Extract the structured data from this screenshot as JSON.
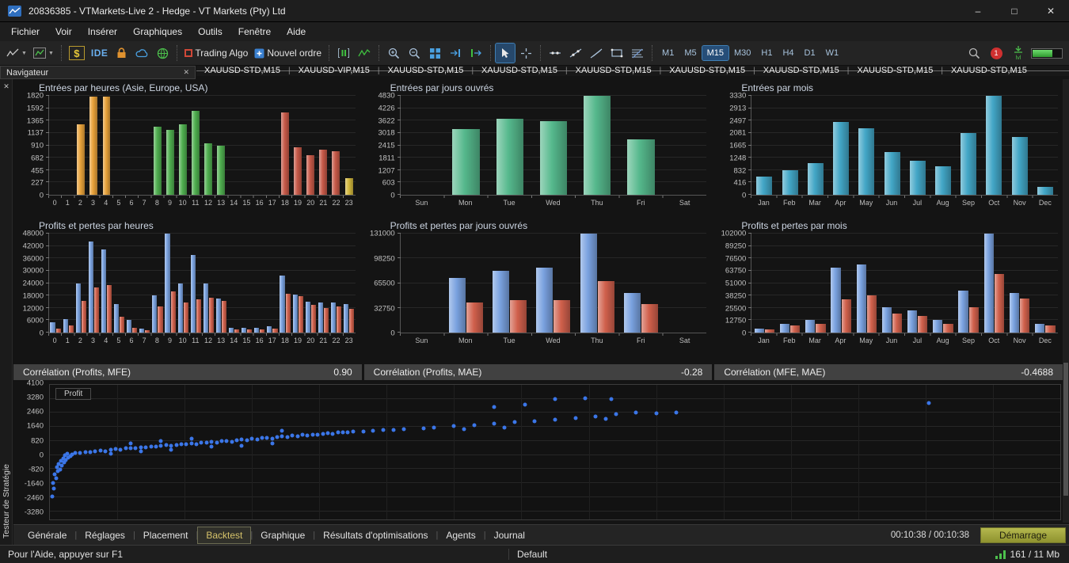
{
  "window": {
    "title": "20836385 - VTMarkets-Live 2 - Hedge - VT Markets (Pty) Ltd",
    "controls": {
      "minimize": "–",
      "maximize": "□",
      "close": "✕"
    }
  },
  "menu": {
    "items": [
      "Fichier",
      "Voir",
      "Insérer",
      "Graphiques",
      "Outils",
      "Fenêtre",
      "Aide"
    ]
  },
  "toolbar": {
    "dollar_label": "$",
    "ide_label": "IDE",
    "trading_algo_label": "Trading Algo",
    "nouvel_ordre_label": "Nouvel ordre",
    "timeframes": [
      "M1",
      "M5",
      "M15",
      "M30",
      "H1",
      "H4",
      "D1",
      "W1"
    ],
    "active_timeframe": "M15",
    "badge_count": "1",
    "lvl_label": "lvl"
  },
  "chart_tabs": [
    "XAUUSD-STD,M15",
    "XAUUSD-VIP,M15",
    "XAUUSD-STD,M15",
    "XAUUSD-STD,M15",
    "XAUUSD-STD,M15",
    "XAUUSD-STD,M15",
    "XAUUSD-STD,M15",
    "XAUUSD-STD,M15",
    "XAUUSD-STD,M15"
  ],
  "navigator": {
    "title": "Navigateur"
  },
  "tester": {
    "panel_title": "Testeur de Stratégie",
    "tabs": [
      "Générale",
      "Réglages",
      "Placement",
      "Backtest",
      "Graphique",
      "Résultats d'optimisations",
      "Agents",
      "Journal"
    ],
    "active_tab": "Backtest",
    "time": "00:10:38 / 00:10:38",
    "start_button": "Démarrage",
    "correlations": [
      {
        "label": "Corrélation (Profits, MFE)",
        "value": "0.90"
      },
      {
        "label": "Corrélation (Profits, MAE)",
        "value": "-0.28"
      },
      {
        "label": "Corrélation (MFE, MAE)",
        "value": "-0.4688"
      }
    ]
  },
  "status_bar": {
    "help": "Pour l'Aide, appuyer sur F1",
    "profile": "Default",
    "memory": "161 / 11 Mb"
  },
  "chart_data": [
    {
      "id": "entries-hours",
      "type": "bar",
      "title": "Entrées par heures (Asie, Europe, USA)",
      "categories": [
        "0",
        "1",
        "2",
        "3",
        "4",
        "5",
        "6",
        "7",
        "8",
        "9",
        "10",
        "11",
        "12",
        "13",
        "14",
        "15",
        "16",
        "17",
        "18",
        "19",
        "20",
        "21",
        "22",
        "23"
      ],
      "yticks": [
        0,
        227,
        455,
        682,
        910,
        1137,
        1365,
        1592,
        1820
      ],
      "series": [
        {
          "name": "Entrées",
          "values": [
            0,
            0,
            1300,
            1800,
            1800,
            0,
            0,
            0,
            1250,
            1200,
            1300,
            1550,
            950,
            900,
            0,
            0,
            0,
            0,
            1510,
            880,
            730,
            830,
            800,
            310
          ]
        }
      ],
      "bar_colors": [
        null,
        null,
        "#e8a23a",
        "#e8a23a",
        "#e8a23a",
        null,
        null,
        null,
        "#4fae4f",
        "#4fae4f",
        "#4fae4f",
        "#4fae4f",
        "#4fae4f",
        "#4fae4f",
        null,
        null,
        null,
        null,
        "#c75948",
        "#c75948",
        "#c75948",
        "#c75948",
        "#c75948",
        "#d2b73c"
      ]
    },
    {
      "id": "entries-days",
      "type": "bar",
      "title": "Entrées par jours ouvrés",
      "categories": [
        "Sun",
        "Mon",
        "Tue",
        "Wed",
        "Thu",
        "Fri",
        "Sat"
      ],
      "yticks": [
        0,
        603,
        1207,
        1811,
        2415,
        3018,
        3622,
        4226,
        4830
      ],
      "series": [
        {
          "name": "Entrées",
          "color": "#55b88c",
          "values": [
            0,
            3200,
            3700,
            3600,
            4830,
            2700,
            0
          ]
        }
      ]
    },
    {
      "id": "entries-months",
      "type": "bar",
      "title": "Entrées par mois",
      "categories": [
        "Jan",
        "Feb",
        "Mar",
        "Apr",
        "May",
        "Jun",
        "Jul",
        "Aug",
        "Sep",
        "Oct",
        "Nov",
        "Dec"
      ],
      "yticks": [
        0,
        416,
        832,
        1248,
        1665,
        2081,
        2497,
        2913,
        3330
      ],
      "series": [
        {
          "name": "Entrées",
          "color": "#42a6c6",
          "values": [
            620,
            830,
            1060,
            2450,
            2250,
            1450,
            1150,
            950,
            2080,
            3330,
            1950,
            260
          ]
        }
      ]
    },
    {
      "id": "pl-hours",
      "type": "bar",
      "title": "Profits et pertes par heures",
      "categories": [
        "0",
        "1",
        "2",
        "3",
        "4",
        "5",
        "6",
        "7",
        "8",
        "9",
        "10",
        "11",
        "12",
        "13",
        "14",
        "15",
        "16",
        "17",
        "18",
        "19",
        "20",
        "21",
        "22",
        "23"
      ],
      "yticks": [
        0,
        6000,
        12000,
        18000,
        24000,
        30000,
        36000,
        42000,
        48000
      ],
      "series": [
        {
          "name": "Profits",
          "color": "#7aa2e0",
          "values": [
            5000,
            6500,
            24000,
            44000,
            40500,
            14000,
            6000,
            2000,
            18000,
            48000,
            24000,
            37500,
            24000,
            16500,
            2500,
            2500,
            2500,
            3000,
            27500,
            18500,
            15000,
            14500,
            14500,
            14000
          ]
        },
        {
          "name": "Pertes",
          "color": "#d0604c",
          "values": [
            2000,
            3500,
            15500,
            22000,
            23000,
            7500,
            2500,
            1000,
            12500,
            20000,
            14500,
            16000,
            17000,
            15500,
            1500,
            1500,
            1500,
            2000,
            19000,
            17500,
            13500,
            12000,
            12500,
            11500
          ]
        }
      ]
    },
    {
      "id": "pl-days",
      "type": "bar",
      "title": "Profits et pertes par jours ouvrés",
      "categories": [
        "Sun",
        "Mon",
        "Tue",
        "Wed",
        "Thu",
        "Fri",
        "Sat"
      ],
      "yticks": [
        0,
        32750,
        65500,
        98250,
        131000
      ],
      "series": [
        {
          "name": "Profits",
          "color": "#7aa2e0",
          "values": [
            0,
            72000,
            82000,
            86000,
            131000,
            52000,
            0
          ]
        },
        {
          "name": "Pertes",
          "color": "#d0604c",
          "values": [
            0,
            40000,
            42500,
            43500,
            68000,
            37500,
            0
          ]
        }
      ]
    },
    {
      "id": "pl-months",
      "type": "bar",
      "title": "Profits et pertes par mois",
      "categories": [
        "Jan",
        "Feb",
        "Mar",
        "Apr",
        "May",
        "Jun",
        "Jul",
        "Aug",
        "Sep",
        "Oct",
        "Nov",
        "Dec"
      ],
      "yticks": [
        0,
        12750,
        25500,
        38250,
        51000,
        63750,
        76500,
        89250,
        102000
      ],
      "series": [
        {
          "name": "Profits",
          "color": "#7aa2e0",
          "values": [
            4000,
            9000,
            13000,
            67000,
            70000,
            26000,
            23000,
            13000,
            43000,
            102000,
            41000,
            9000
          ]
        },
        {
          "name": "Pertes",
          "color": "#d0604c",
          "values": [
            3000,
            7000,
            9000,
            34000,
            38000,
            20000,
            17000,
            9000,
            26000,
            60000,
            35000,
            7000
          ]
        }
      ]
    },
    {
      "id": "profit-scatter",
      "type": "scatter",
      "label": "Profit",
      "yticks": [
        4100,
        3280,
        2460,
        1640,
        820,
        0,
        -820,
        -1640,
        -2460,
        -3280
      ],
      "ylim": [
        -3760,
        4100
      ],
      "color": "#3b76e8",
      "points": [
        [
          0.002,
          -2400
        ],
        [
          0.004,
          -1950
        ],
        [
          0.003,
          -1620
        ],
        [
          0.006,
          -1370
        ],
        [
          0.005,
          -1120
        ],
        [
          0.008,
          -960
        ],
        [
          0.01,
          -850
        ],
        [
          0.007,
          -720
        ],
        [
          0.012,
          -610
        ],
        [
          0.009,
          -510
        ],
        [
          0.014,
          -430
        ],
        [
          0.011,
          -350
        ],
        [
          0.016,
          -280
        ],
        [
          0.013,
          -210
        ],
        [
          0.018,
          -130
        ],
        [
          0.02,
          -70
        ],
        [
          0.015,
          -30
        ],
        [
          0.022,
          20
        ],
        [
          0.017,
          70
        ],
        [
          0.025,
          140
        ],
        [
          0.03,
          120
        ],
        [
          0.035,
          185
        ],
        [
          0.04,
          150
        ],
        [
          0.045,
          225
        ],
        [
          0.05,
          265
        ],
        [
          0.055,
          215
        ],
        [
          0.06,
          305
        ],
        [
          0.065,
          345
        ],
        [
          0.07,
          315
        ],
        [
          0.075,
          385
        ],
        [
          0.08,
          425
        ],
        [
          0.085,
          395
        ],
        [
          0.09,
          465
        ],
        [
          0.095,
          435
        ],
        [
          0.1,
          505
        ],
        [
          0.105,
          485
        ],
        [
          0.11,
          545
        ],
        [
          0.115,
          565
        ],
        [
          0.12,
          525
        ],
        [
          0.125,
          605
        ],
        [
          0.13,
          645
        ],
        [
          0.135,
          615
        ],
        [
          0.14,
          685
        ],
        [
          0.145,
          655
        ],
        [
          0.15,
          725
        ],
        [
          0.155,
          705
        ],
        [
          0.16,
          765
        ],
        [
          0.165,
          745
        ],
        [
          0.17,
          805
        ],
        [
          0.175,
          825
        ],
        [
          0.18,
          785
        ],
        [
          0.185,
          865
        ],
        [
          0.19,
          905
        ],
        [
          0.195,
          875
        ],
        [
          0.2,
          945
        ],
        [
          0.205,
          925
        ],
        [
          0.21,
          985
        ],
        [
          0.215,
          1005
        ],
        [
          0.22,
          965
        ],
        [
          0.225,
          1045
        ],
        [
          0.23,
          1085
        ],
        [
          0.235,
          1055
        ],
        [
          0.24,
          1125
        ],
        [
          0.245,
          1095
        ],
        [
          0.25,
          1165
        ],
        [
          0.255,
          1145
        ],
        [
          0.26,
          1205
        ],
        [
          0.265,
          1185
        ],
        [
          0.27,
          1245
        ],
        [
          0.275,
          1265
        ],
        [
          0.28,
          1225
        ],
        [
          0.285,
          1305
        ],
        [
          0.29,
          1345
        ],
        [
          0.295,
          1315
        ],
        [
          0.3,
          1385
        ],
        [
          0.31,
          1365
        ],
        [
          0.32,
          1425
        ],
        [
          0.33,
          1465
        ],
        [
          0.34,
          1445
        ],
        [
          0.35,
          1505
        ],
        [
          0.06,
          60
        ],
        [
          0.09,
          205
        ],
        [
          0.12,
          300
        ],
        [
          0.16,
          480
        ],
        [
          0.19,
          560
        ],
        [
          0.22,
          700
        ],
        [
          0.08,
          700
        ],
        [
          0.11,
          800
        ],
        [
          0.14,
          950
        ],
        [
          0.23,
          1400
        ],
        [
          0.37,
          1560
        ],
        [
          0.38,
          1625
        ],
        [
          0.4,
          1705
        ],
        [
          0.41,
          1505
        ],
        [
          0.42,
          1765
        ],
        [
          0.44,
          1825
        ],
        [
          0.45,
          1625
        ],
        [
          0.46,
          1905
        ],
        [
          0.48,
          1955
        ],
        [
          0.5,
          2055
        ],
        [
          0.52,
          2155
        ],
        [
          0.54,
          2255
        ],
        [
          0.55,
          2105
        ],
        [
          0.56,
          2385
        ],
        [
          0.58,
          2465
        ],
        [
          0.6,
          2435
        ],
        [
          0.62,
          2505
        ],
        [
          0.5,
          3280
        ],
        [
          0.53,
          3320
        ],
        [
          0.556,
          3255
        ],
        [
          0.87,
          3060
        ],
        [
          0.44,
          2805
        ],
        [
          0.47,
          2950
        ]
      ]
    }
  ]
}
